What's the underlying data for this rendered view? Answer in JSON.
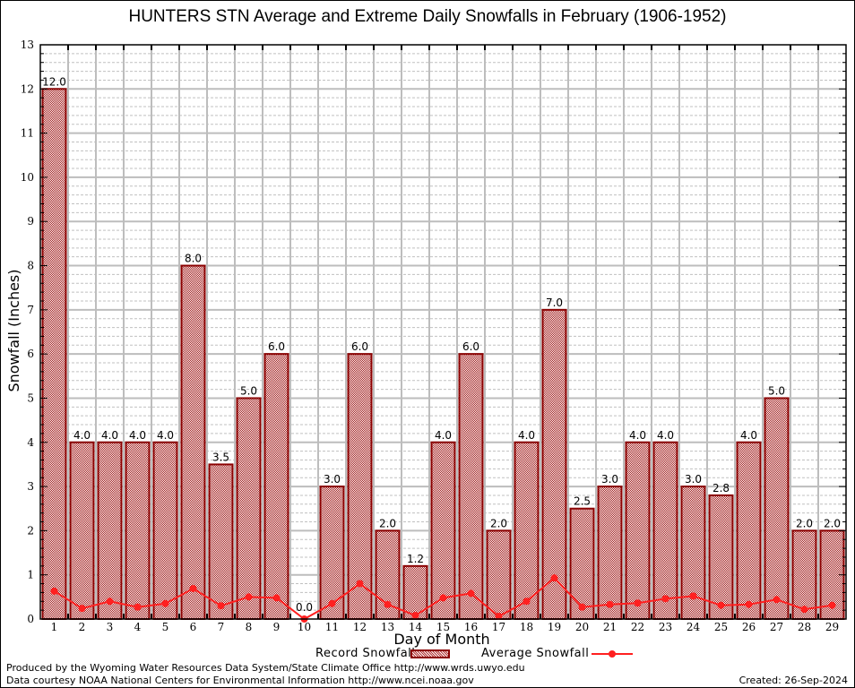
{
  "chart_data": {
    "type": "bar",
    "title": "HUNTERS STN Average and Extreme Daily Snowfalls in February (1906-1952)",
    "xlabel": "Day of Month",
    "ylabel": "Snowfall (Inches)",
    "ylim": [
      0,
      13
    ],
    "yticks": [
      "0",
      "1",
      "2",
      "3",
      "4",
      "5",
      "6",
      "7",
      "8",
      "9",
      "10",
      "11",
      "12",
      "13"
    ],
    "grid": true,
    "legend_position": "bottom-center",
    "categories": [
      "1",
      "2",
      "3",
      "4",
      "5",
      "6",
      "7",
      "8",
      "9",
      "10",
      "11",
      "12",
      "13",
      "14",
      "15",
      "16",
      "17",
      "18",
      "19",
      "20",
      "21",
      "22",
      "23",
      "24",
      "25",
      "26",
      "27",
      "28",
      "29"
    ],
    "series": [
      {
        "name": "Record Snowfall",
        "type": "bar",
        "color": "#8b0000",
        "values": [
          12.0,
          4.0,
          4.0,
          4.0,
          4.0,
          8.0,
          3.5,
          5.0,
          6.0,
          0.0,
          3.0,
          6.0,
          2.0,
          1.2,
          4.0,
          6.0,
          2.0,
          4.0,
          7.0,
          2.5,
          3.0,
          4.0,
          4.0,
          3.0,
          2.8,
          4.0,
          5.0,
          2.0,
          2.0
        ],
        "labels": [
          "12.0",
          "4.0",
          "4.0",
          "4.0",
          "4.0",
          "8.0",
          "3.5",
          "5.0",
          "6.0",
          "0.0",
          "3.0",
          "6.0",
          "2.0",
          "1.2",
          "4.0",
          "6.0",
          "2.0",
          "4.0",
          "7.0",
          "2.5",
          "3.0",
          "4.0",
          "4.0",
          "3.0",
          "2.8",
          "4.0",
          "5.0",
          "2.0",
          "2.0"
        ]
      },
      {
        "name": "Average Snowfall",
        "type": "line",
        "color": "#ff2020",
        "values": [
          0.63,
          0.24,
          0.4,
          0.27,
          0.35,
          0.69,
          0.3,
          0.5,
          0.48,
          0.0,
          0.35,
          0.8,
          0.33,
          0.08,
          0.48,
          0.58,
          0.06,
          0.4,
          0.93,
          0.27,
          0.33,
          0.36,
          0.46,
          0.52,
          0.31,
          0.33,
          0.44,
          0.22,
          0.31
        ]
      }
    ]
  },
  "footer": {
    "credit_line1": "Produced by the Wyoming Water Resources Data System/State Climate Office http://www.wrds.uwyo.edu",
    "credit_line2": "Data courtesy NOAA National Centers for Environmental Information http://www.ncei.noaa.gov",
    "created": "Created: 26-Sep-2024"
  }
}
